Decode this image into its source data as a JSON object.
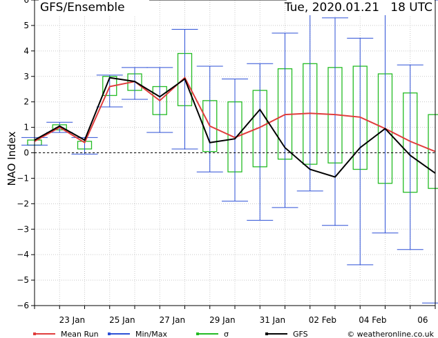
{
  "chart_data": {
    "type": "line",
    "title": "GFS/Ensemble",
    "date_label": "Tue, 2020.01.21   18 UTC",
    "ylabel": "NAO Index",
    "ylim": [
      -6,
      6
    ],
    "yticks": [
      -6,
      -5,
      -4,
      -3,
      -2,
      -1,
      0,
      1,
      2,
      3,
      4,
      5,
      6
    ],
    "xticks": [
      "23 Jan",
      "25 Jan",
      "27 Jan",
      "29 Jan",
      "31 Jan",
      "02 Feb",
      "04 Feb",
      "06"
    ],
    "xtick_positions": [
      1.5,
      3.5,
      5.5,
      7.5,
      9.5,
      11.5,
      13.5,
      15.5
    ],
    "xlim": [
      0,
      16
    ],
    "x": [
      0.0,
      1.0,
      2.0,
      3.0,
      4.0,
      5.0,
      6.0,
      7.0,
      8.0,
      9.0,
      10.0,
      11.0,
      12.0,
      13.0,
      14.0,
      15.0,
      16.0
    ],
    "series": [
      {
        "name": "Mean Run",
        "color": "#e03c3c",
        "values": [
          0.45,
          1.0,
          0.4,
          2.6,
          2.8,
          2.05,
          2.95,
          1.05,
          0.6,
          1.0,
          1.5,
          1.55,
          1.5,
          1.4,
          0.95,
          0.45,
          0.05
        ]
      },
      {
        "name": "GFS",
        "color": "#000000",
        "values": [
          0.5,
          1.05,
          0.5,
          2.95,
          2.8,
          2.2,
          2.9,
          0.4,
          0.55,
          1.7,
          0.2,
          -0.65,
          -0.95,
          0.2,
          0.95,
          -0.1,
          -0.8
        ]
      },
      {
        "name": "Min/Max",
        "color": "#2b4fd6",
        "min": [
          0.3,
          0.8,
          -0.05,
          1.8,
          2.1,
          0.8,
          0.15,
          -0.75,
          -1.9,
          -2.65,
          -2.15,
          -1.5,
          -2.85,
          -4.4,
          -3.15,
          -3.8,
          -5.9
        ],
        "max": [
          0.6,
          1.2,
          0.6,
          3.05,
          3.35,
          3.35,
          4.85,
          3.4,
          2.9,
          3.5,
          4.7,
          5.7,
          5.3,
          4.5,
          6.0,
          3.45,
          6.0
        ]
      },
      {
        "name": "σ",
        "color": "#22bb22",
        "low": [
          0.3,
          0.9,
          0.15,
          2.25,
          2.45,
          1.5,
          1.85,
          0.05,
          -0.75,
          -0.55,
          -0.25,
          -0.45,
          -0.4,
          -0.65,
          -1.2,
          -1.55,
          -1.4
        ],
        "high": [
          0.5,
          1.1,
          0.45,
          3.0,
          3.1,
          2.6,
          3.9,
          2.05,
          2.0,
          2.45,
          3.3,
          3.5,
          3.35,
          3.4,
          3.1,
          2.35,
          1.5
        ]
      }
    ],
    "legend": [
      {
        "label": "Mean Run",
        "color": "#e03c3c"
      },
      {
        "label": "Min/Max",
        "color": "#2b4fd6"
      },
      {
        "label": "σ",
        "color": "#22bb22"
      },
      {
        "label": "GFS",
        "color": "#000000"
      }
    ],
    "credit": "© weatheronline.co.uk",
    "grid": true,
    "zero_line": "dashed"
  }
}
